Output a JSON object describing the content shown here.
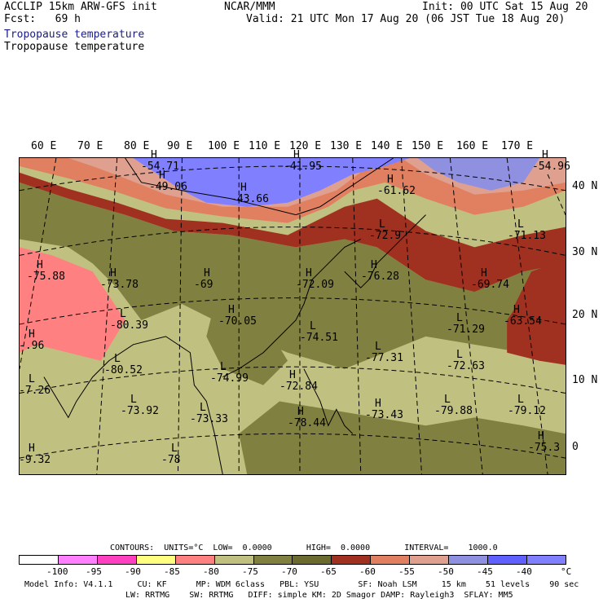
{
  "header": {
    "line1_left": "ACCLIP 15km ARW-GFS init",
    "line1_center": "NCAR/MMM",
    "line1_right": "Init: 00 UTC Sat 15 Aug 20",
    "line2_left": "Fcst:   69 h",
    "line2_right": "Valid: 21 UTC Mon 17 Aug 20 (06 JST Tue 18 Aug 20)",
    "title_blue": "Tropopause temperature",
    "title_black": "Tropopause temperature"
  },
  "map": {
    "lon_labels": [
      "60 E",
      "70 E",
      "80 E",
      "90 E",
      "100 E",
      "110 E",
      "120 E",
      "130 E",
      "140 E",
      "150 E",
      "160 E",
      "170 E"
    ],
    "lat_labels": [
      "40 N",
      "30 N",
      "20 N",
      "10 N",
      "0"
    ],
    "centers": [
      {
        "type": "H",
        "value": "-54.71"
      },
      {
        "type": "H",
        "value": "-41.95"
      },
      {
        "type": "H",
        "value": "-54.96"
      },
      {
        "type": "H",
        "value": "-49.06"
      },
      {
        "type": "H",
        "value": "-43.66"
      },
      {
        "type": "H",
        "value": "-61.62"
      },
      {
        "type": "L",
        "value": "-71.13"
      },
      {
        "type": "L",
        "value": "-72.9"
      },
      {
        "type": "H",
        "value": "-75.88"
      },
      {
        "type": "H",
        "value": "-76.28"
      },
      {
        "type": "H",
        "value": "-73.78"
      },
      {
        "type": "H",
        "value": "-69"
      },
      {
        "type": "H",
        "value": "-72.09"
      },
      {
        "type": "H",
        "value": "-69.74"
      },
      {
        "type": "L",
        "value": "-80.39"
      },
      {
        "type": "H",
        "value": "-70.05"
      },
      {
        "type": "H",
        "value": "-63.54"
      },
      {
        "type": "L",
        "value": "-74.51"
      },
      {
        "type": "L",
        "value": "-71.29"
      },
      {
        "type": "H",
        "value": "-.96"
      },
      {
        "type": "L",
        "value": "-77.31"
      },
      {
        "type": "L",
        "value": "-80.52"
      },
      {
        "type": "L",
        "value": "-72.63"
      },
      {
        "type": "L",
        "value": "-74.99"
      },
      {
        "type": "L",
        "value": "-7.26"
      },
      {
        "type": "H",
        "value": "-72.84"
      },
      {
        "type": "L",
        "value": "-79.88"
      },
      {
        "type": "L",
        "value": "-73.92"
      },
      {
        "type": "L",
        "value": "-73.33"
      },
      {
        "type": "H",
        "value": "-73.43"
      },
      {
        "type": "L",
        "value": "-79.12"
      },
      {
        "type": "H",
        "value": "-78.44"
      },
      {
        "type": "H",
        "value": "-75.3"
      },
      {
        "type": "H",
        "value": "-9.32"
      },
      {
        "type": "L",
        "value": "-78"
      }
    ]
  },
  "contour_info": "CONTOURS:  UNITS=°C  LOW=  0.0000       HIGH=  0.0000       INTERVAL=    1000.0",
  "legend": {
    "colors": [
      "#ffffff",
      "#ff80ff",
      "#ff40c0",
      "#ffff80",
      "#ff8080",
      "#c0c080",
      "#808040",
      "#6b6b2f",
      "#a03020",
      "#e08060",
      "#e0a090",
      "#9090e0",
      "#6060ff",
      "#8080ff"
    ],
    "ticks": [
      "-100",
      "-95",
      "-90",
      "-85",
      "-80",
      "-75",
      "-70",
      "-65",
      "-60",
      "-55",
      "-50",
      "-45",
      "-40"
    ],
    "unit": "°C"
  },
  "footer": {
    "line1": "Model Info: V4.1.1     CU: KF      MP: WDM 6class   PBL: YSU        SF: Noah LSM     15 km    51 levels    90 sec",
    "line2": "LW: RRTMG    SW: RRTMG   DIFF: simple KM: 2D Smagor DAMP: Rayleigh3  SFLAY: MM5"
  }
}
